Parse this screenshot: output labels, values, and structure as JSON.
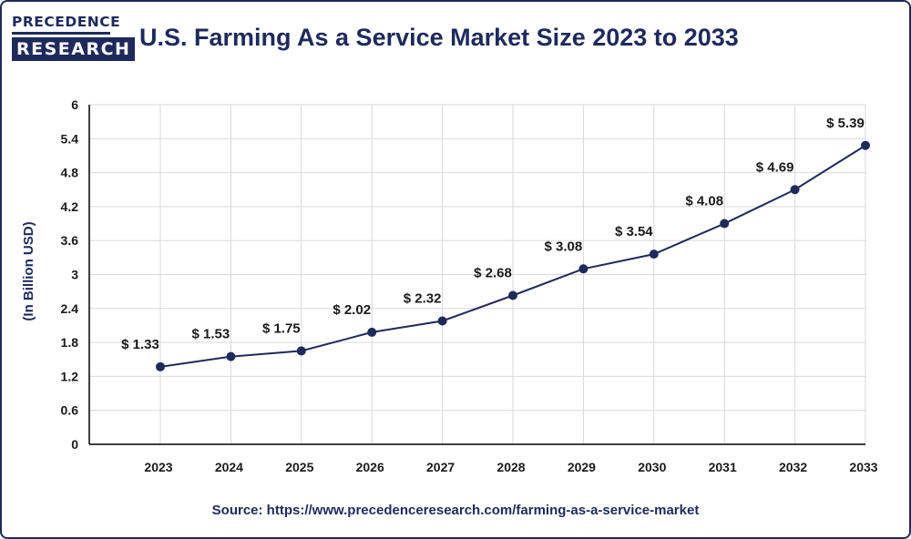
{
  "logo": {
    "line1": "PRECEDENCE",
    "line2": "RESEARCH"
  },
  "source": "Source: https://www.precedenceresearch.com/farming-as-a-service-market",
  "colors": {
    "primary": "#1f2a5c",
    "grid": "#d9d9d9",
    "axis": "#000000"
  },
  "chart_data": {
    "type": "line",
    "title": "U.S. Farming As a Service Market Size 2023 to 2033",
    "xlabel": "",
    "ylabel": "(In Billion USD)",
    "ylim": [
      0,
      6
    ],
    "yticks": [
      "0",
      "0.6",
      "1.2",
      "1.8",
      "2.4",
      "3",
      "3.6",
      "4.2",
      "4.8",
      "5.4",
      "6"
    ],
    "categories": [
      "2023",
      "2024",
      "2025",
      "2026",
      "2027",
      "2028",
      "2029",
      "2030",
      "2031",
      "2032",
      "2033"
    ],
    "series": [
      {
        "values": [
          1.33,
          1.53,
          1.75,
          2.02,
          2.32,
          2.68,
          3.08,
          3.54,
          4.08,
          4.69,
          5.39
        ],
        "labels": [
          "$ 1.33",
          "$ 1.53",
          "$ 1.75",
          "$ 2.02",
          "$ 2.32",
          "$ 2.68",
          "$ 3.08",
          "$ 3.54",
          "$ 4.08",
          "$ 4.69",
          "$ 5.39"
        ],
        "plotted_values": [
          1.37,
          1.55,
          1.65,
          1.98,
          2.18,
          2.63,
          3.1,
          3.36,
          3.9,
          4.5,
          5.28
        ]
      }
    ],
    "grid": true,
    "legend": "none"
  }
}
